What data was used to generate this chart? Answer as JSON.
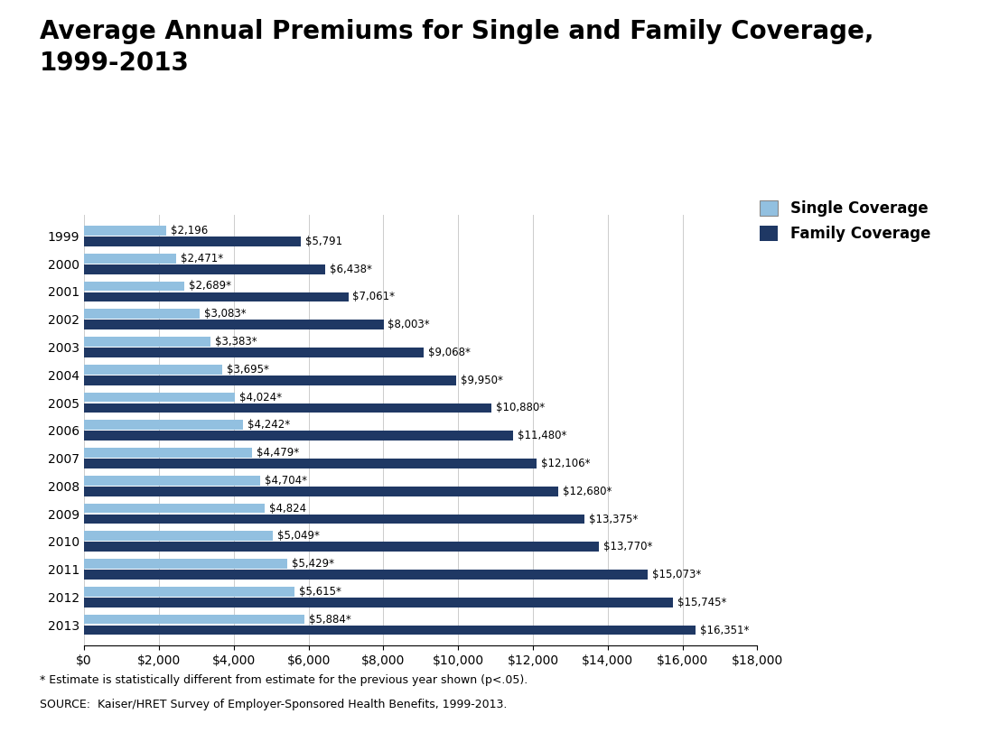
{
  "title_line1": "Average Annual Premiums for Single and Family Coverage,",
  "title_line2": "1999-2013",
  "years": [
    "1999",
    "2000",
    "2001",
    "2002",
    "2003",
    "2004",
    "2005",
    "2006",
    "2007",
    "2008",
    "2009",
    "2010",
    "2011",
    "2012",
    "2013"
  ],
  "single": [
    2196,
    2471,
    2689,
    3083,
    3383,
    3695,
    4024,
    4242,
    4479,
    4704,
    4824,
    5049,
    5429,
    5615,
    5884
  ],
  "family": [
    5791,
    6438,
    7061,
    8003,
    9068,
    9950,
    10880,
    11480,
    12106,
    12680,
    13375,
    13770,
    15073,
    15745,
    16351
  ],
  "single_labels": [
    "$2,196",
    "$2,471*",
    "$2,689*",
    "$3,083*",
    "$3,383*",
    "$3,695*",
    "$4,024*",
    "$4,242*",
    "$4,479*",
    "$4,704*",
    "$4,824",
    "$5,049*",
    "$5,429*",
    "$5,615*",
    "$5,884*"
  ],
  "family_labels": [
    "$5,791",
    "$6,438*",
    "$7,061*",
    "$8,003*",
    "$9,068*",
    "$9,950*",
    "$10,880*",
    "$11,480*",
    "$12,106*",
    "$12,680*",
    "$13,375*",
    "$13,770*",
    "$15,073*",
    "$15,745*",
    "$16,351*"
  ],
  "single_color": "#92C0E0",
  "family_color": "#1F3864",
  "xlim": [
    0,
    18000
  ],
  "xticks": [
    0,
    2000,
    4000,
    6000,
    8000,
    10000,
    12000,
    14000,
    16000,
    18000
  ],
  "xtick_labels": [
    "$0",
    "$2,000",
    "$4,000",
    "$6,000",
    "$8,000",
    "$10,000",
    "$12,000",
    "$14,000",
    "$16,000",
    "$18,000"
  ],
  "legend_single": "Single Coverage",
  "legend_family": "Family Coverage",
  "footnote1": "* Estimate is statistically different from estimate for the previous year shown (p<.05).",
  "footnote2": "SOURCE:  Kaiser/HRET Survey of Employer-Sponsored Health Benefits, 1999-2013.",
  "bar_height": 0.35,
  "label_fontsize": 8.5,
  "tick_fontsize": 10,
  "title_fontsize": 20,
  "legend_fontsize": 12,
  "footnote_fontsize": 9,
  "background_color": "#FFFFFF"
}
